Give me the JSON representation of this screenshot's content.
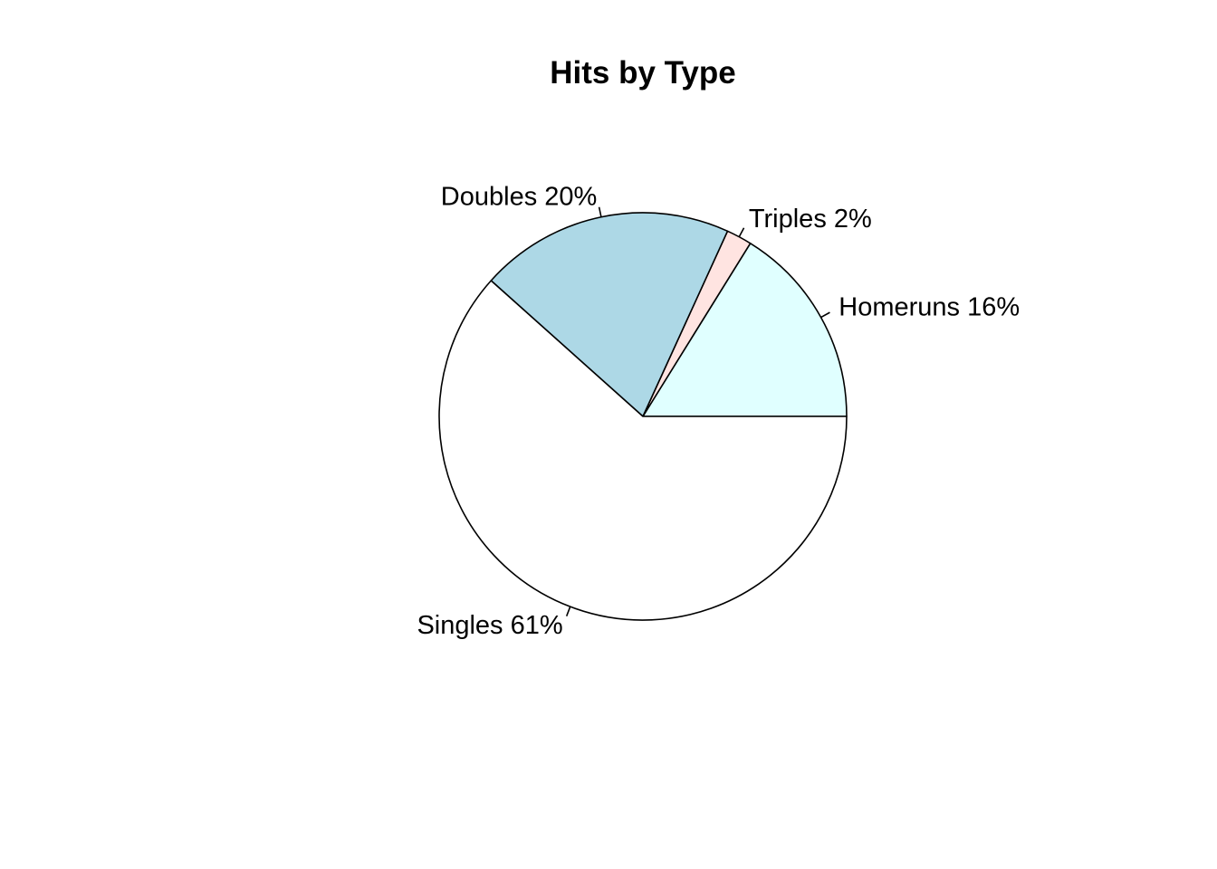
{
  "chart_data": {
    "type": "pie",
    "title": "Hits by Type",
    "direction": "counterclockwise",
    "start_angle_deg": 0,
    "slices": [
      {
        "name": "Homeruns",
        "percent": 16,
        "label": "Homeruns 16%",
        "color": "#E0FFFF"
      },
      {
        "name": "Triples",
        "percent": 2,
        "label": "Triples 2%",
        "color": "#FFE4E1"
      },
      {
        "name": "Doubles",
        "percent": 20,
        "label": "Doubles 20%",
        "color": "#ADD8E6"
      },
      {
        "name": "Singles",
        "percent": 61,
        "label": "Singles 61%",
        "color": "#FFFFFF"
      }
    ]
  }
}
